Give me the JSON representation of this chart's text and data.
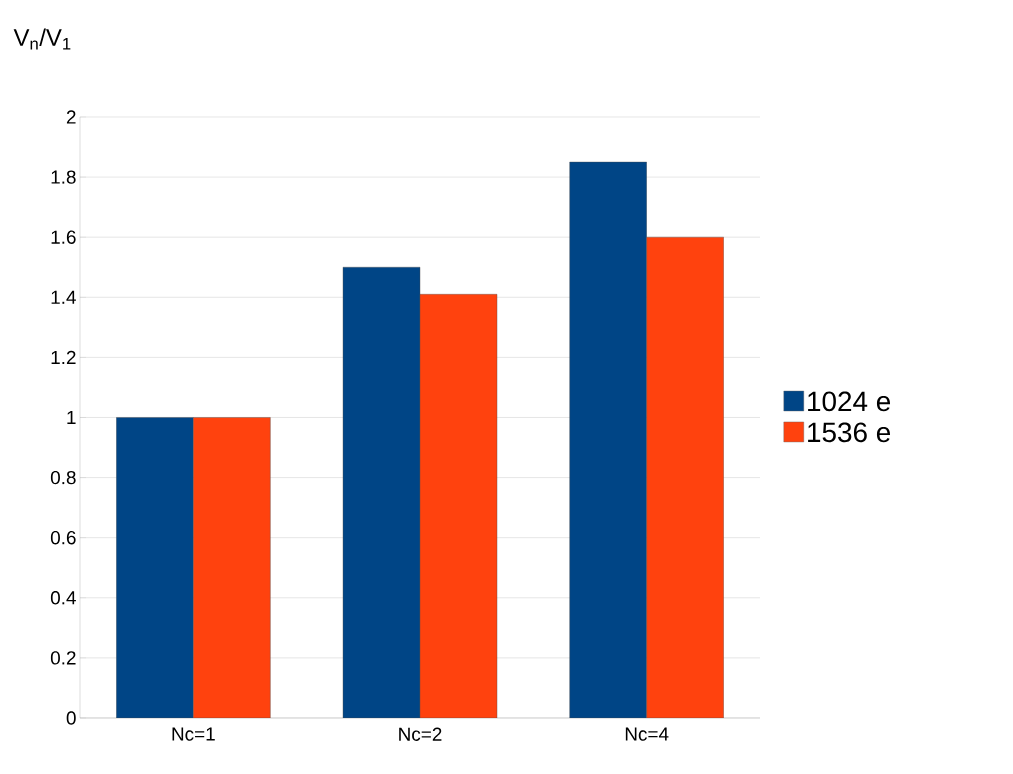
{
  "chart_data": {
    "type": "bar",
    "ylabel": "V$_{n}$/V$_{1}$",
    "categories": [
      "Nc=1",
      "Nc=2",
      "Nc=4"
    ],
    "series": [
      {
        "name": "1024 e",
        "color": "#004586",
        "values": [
          1,
          1.5,
          1.85
        ]
      },
      {
        "name": "1536 e",
        "color": "#ff420e",
        "values": [
          1,
          1.41,
          1.6
        ]
      }
    ],
    "ylim": [
      0,
      2
    ],
    "yticks": [
      0,
      0.2,
      0.4,
      0.6,
      0.8,
      1,
      1.2,
      1.4,
      1.6,
      1.8,
      2
    ],
    "grid": "y",
    "legend": "right"
  }
}
